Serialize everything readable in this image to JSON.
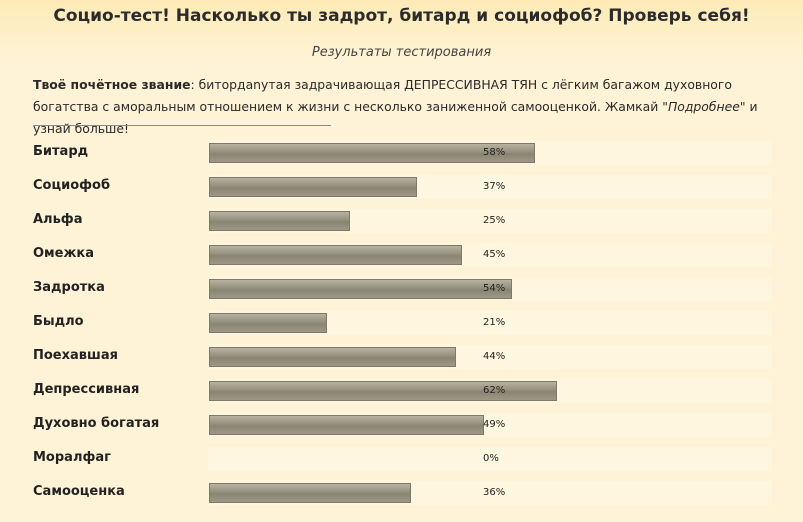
{
  "header": {
    "title": "Социо-тест! Насколько ты задрот, битард и социофоб? Проверь себя!",
    "subtitle": "Результаты тестирования"
  },
  "description": {
    "label": "Твоё почётное звание",
    "colon": ":",
    "text1": " битордanутая задрачивающая ДЕПРЕССИВНАЯ ТЯН с лёгким багажом духовного богатства с аморальным отношением к жизни с несколько заниженной самооценкой. Жамкай \"",
    "link": "Подробнее",
    "text2": "\" и узнай больше!"
  },
  "results": [
    {
      "label": "Битард",
      "value": 58,
      "display": "58%"
    },
    {
      "label": "Социофоб",
      "value": 37,
      "display": "37%"
    },
    {
      "label": "Альфа",
      "value": 25,
      "display": "25%"
    },
    {
      "label": "Омежка",
      "value": 45,
      "display": "45%"
    },
    {
      "label": "Задротка",
      "value": 54,
      "display": "54%"
    },
    {
      "label": "Быдло",
      "value": 21,
      "display": "21%"
    },
    {
      "label": "Поехавшая",
      "value": 44,
      "display": "44%"
    },
    {
      "label": "Депрессивная",
      "value": 62,
      "display": "62%"
    },
    {
      "label": "Духовно богатая",
      "value": 49,
      "display": "49%"
    },
    {
      "label": "Моралфаг",
      "value": 0,
      "display": "0%"
    },
    {
      "label": "Самооценка",
      "value": 36,
      "display": "36%"
    }
  ]
}
